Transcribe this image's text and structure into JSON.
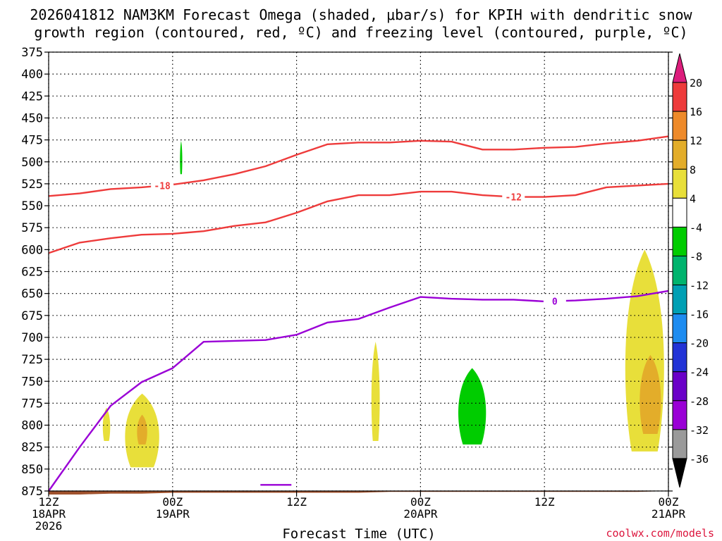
{
  "title_line1": "2026041812 NAM3KM Forecast Omega (shaded, μbar/s) for KPIH with dendritic snow",
  "title_line2": "growth region (contoured, red, ºC) and freezing level (contoured, purple, ºC)",
  "xlabel": "Forecast Time (UTC)",
  "credit": "coolwx.com/models",
  "colors": {
    "dgz": "#ee3b3b",
    "freezing": "#9a00d6",
    "terrain": "#a0522d",
    "omega_pos_4_8": "#e8df3a",
    "omega_pos_8_12": "#e3ad2a",
    "omega_neg_4_8": "#00cc00"
  },
  "chart_data": {
    "type": "time-height cross-section",
    "title": "2026041812 NAM3KM Forecast Omega (shaded, μbar/s) for KPIH with dendritic snow growth region (contoured, red, ºC) and freezing level (contoured, purple, ºC)",
    "xlabel": "Forecast Time (UTC)",
    "ylabel": "",
    "y_reversed": true,
    "ylim": [
      875,
      375
    ],
    "y_ticks": [
      375,
      400,
      425,
      450,
      475,
      500,
      525,
      550,
      575,
      600,
      625,
      650,
      675,
      700,
      725,
      750,
      775,
      800,
      825,
      850,
      875
    ],
    "x_ticks": [
      {
        "hour": 0,
        "lines": [
          "12Z",
          "18APR",
          "2026"
        ]
      },
      {
        "hour": 12,
        "lines": [
          "00Z",
          "19APR"
        ]
      },
      {
        "hour": 24,
        "lines": [
          "12Z"
        ]
      },
      {
        "hour": 36,
        "lines": [
          "00Z",
          "20APR"
        ]
      },
      {
        "hour": 48,
        "lines": [
          "12Z"
        ]
      },
      {
        "hour": 60,
        "lines": [
          "00Z",
          "21APR"
        ]
      }
    ],
    "hours": [
      0,
      3,
      6,
      9,
      12,
      15,
      18,
      21,
      24,
      27,
      30,
      33,
      36,
      39,
      42,
      45,
      48,
      51,
      54,
      57,
      60
    ],
    "contours": [
      {
        "label": "-18",
        "hour": 11,
        "pressure_mb": [
          539,
          536,
          531,
          529,
          526,
          521,
          514,
          505,
          492,
          480,
          478,
          478,
          476,
          477,
          486,
          486,
          484,
          483,
          479,
          476,
          471
        ]
      },
      {
        "label": "-12",
        "hour": 45,
        "pressure_mb": [
          604,
          592,
          587,
          583,
          582,
          579,
          573,
          569,
          558,
          545,
          538,
          538,
          534,
          534,
          538,
          540,
          540,
          538,
          529,
          527,
          525
        ]
      },
      {
        "label": "0",
        "hour": 49,
        "pressure_mb": [
          876,
          825,
          778,
          751,
          735,
          705,
          704,
          703,
          697,
          683,
          679,
          666,
          654,
          656,
          657,
          657,
          659,
          658,
          656,
          653,
          647
        ]
      }
    ],
    "freezing_level_small": {
      "label": "0",
      "hour_range": [
        20.5,
        23.5
      ],
      "pressure_mb": 868
    },
    "omega_shading": {
      "colorbar_values": [
        20,
        16,
        12,
        8,
        4,
        -4,
        -8,
        -12,
        -16,
        -20,
        -24,
        -28,
        -32,
        -36
      ],
      "colorbar_colors": [
        "#dc1d7c",
        "#ee3b3b",
        "#ee8a2a",
        "#e3ad2a",
        "#e8df3a",
        "#ffffff",
        "#00cc00",
        "#00b46e",
        "#00a0b4",
        "#1e8cf0",
        "#2233d6",
        "#6a00c8",
        "#9a00d6",
        "#9a9a9a",
        "#000000"
      ],
      "regions": [
        {
          "range": "4 to 8",
          "hour_start": 5.2,
          "hour_end": 6.0,
          "pressure_top": 780,
          "pressure_bottom": 818
        },
        {
          "range": "4 to 8",
          "hour_start": 7.2,
          "hour_end": 10.9,
          "pressure_top": 764,
          "pressure_bottom": 848
        },
        {
          "range": "8 to 12",
          "hour_start": 8.5,
          "hour_end": 9.6,
          "pressure_top": 788,
          "pressure_bottom": 822
        },
        {
          "range": "4 to 8",
          "hour_start": 31.2,
          "hour_end": 32.1,
          "pressure_top": 705,
          "pressure_bottom": 818
        },
        {
          "range": "4 to 8",
          "hour_start": 55.6,
          "hour_end": 59.8,
          "pressure_top": 600,
          "pressure_bottom": 830
        },
        {
          "range": "8 to 12",
          "hour_start": 57.1,
          "hour_end": 59.4,
          "pressure_top": 720,
          "pressure_bottom": 810
        },
        {
          "range": "-4 to -8",
          "hour_start": 12.7,
          "hour_end": 12.95,
          "pressure_top": 476,
          "pressure_bottom": 514
        },
        {
          "range": "-4 to -8",
          "hour_start": 39.5,
          "hour_end": 42.5,
          "pressure_top": 735,
          "pressure_bottom": 822
        }
      ]
    },
    "terrain_pressure_mb": [
      879,
      879,
      878,
      878,
      877,
      877,
      877,
      877,
      877,
      877,
      877,
      876,
      876,
      876,
      876,
      876,
      876,
      876,
      876,
      876,
      875
    ]
  }
}
